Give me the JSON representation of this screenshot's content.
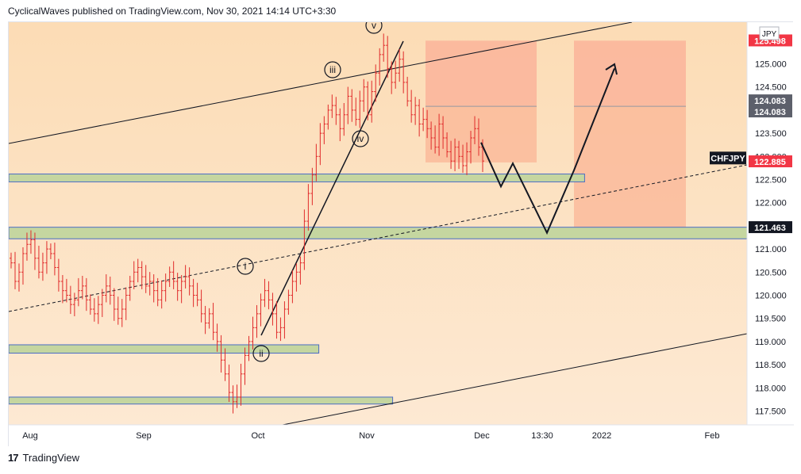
{
  "header": {
    "publish_text": "CyclicalWaves published on TradingView.com, Nov 30, 2021 14:14 UTC+3:30"
  },
  "footer": {
    "logo": "17",
    "brand": "TradingView"
  },
  "chart_data": {
    "type": "candlestick",
    "symbol": "CHFJPY",
    "currency": "JPY",
    "x_ticks": [
      "Aug",
      "Sep",
      "Oct",
      "Nov",
      "Dec",
      "13:30",
      "2022",
      "Feb"
    ],
    "y_ticks": [
      "125.000",
      "124.500",
      "123.500",
      "123.000",
      "122.500",
      "122.000",
      "121.000",
      "120.500",
      "120.000",
      "119.500",
      "119.000",
      "118.500",
      "118.000",
      "117.500"
    ],
    "ylim": [
      117.2,
      125.9
    ],
    "price_labels": [
      {
        "value": 125.498,
        "text": "125.498",
        "color": "#f23645"
      },
      {
        "value": 124.083,
        "text": "124.083",
        "color": "#5d606b"
      },
      {
        "value": 124.083,
        "text": "124.083",
        "color": "#5d606b"
      },
      {
        "value": 122.885,
        "text": "122.885",
        "color": "#f23645"
      },
      {
        "value": 121.463,
        "text": "121.463",
        "color": "#131722"
      }
    ],
    "symbol_tag": {
      "value": 123.0,
      "text": "CHFJPY"
    },
    "wave_labels": [
      "v",
      "iii",
      "iv",
      "i",
      "ii"
    ],
    "ohlc_series": {
      "t0": 0.0,
      "step": 1.0,
      "closes": [
        120.7,
        120.3,
        120.5,
        120.9,
        121.1,
        121.2,
        120.8,
        120.5,
        120.7,
        121.0,
        120.9,
        120.6,
        120.3,
        120.1,
        120.0,
        119.8,
        119.9,
        120.1,
        120.2,
        119.9,
        119.7,
        119.6,
        119.8,
        120.0,
        120.2,
        120.0,
        119.7,
        119.5,
        119.7,
        120.0,
        120.3,
        120.5,
        120.6,
        120.4,
        120.2,
        120.3,
        120.1,
        119.9,
        120.1,
        120.3,
        120.5,
        120.3,
        120.1,
        120.3,
        120.4,
        120.2,
        120.0,
        119.9,
        119.6,
        119.4,
        119.6,
        119.2,
        119.0,
        118.6,
        118.3,
        117.9,
        117.7,
        117.8,
        118.3,
        118.7,
        119.0,
        119.3,
        119.6,
        119.9,
        120.1,
        119.9,
        119.6,
        119.2,
        119.3,
        119.7,
        120.0,
        120.3,
        120.5,
        120.7,
        121.6,
        122.2,
        122.6,
        123.0,
        123.5,
        123.7,
        124.0,
        124.1,
        123.9,
        123.6,
        123.9,
        124.3,
        124.0,
        123.8,
        124.2,
        124.5,
        123.9,
        124.4,
        124.8,
        125.2,
        125.4,
        124.9,
        124.6,
        124.8,
        125.1,
        124.6,
        124.2,
        123.9,
        124.1,
        123.7,
        123.8,
        123.6,
        123.4,
        123.2,
        123.7,
        123.4,
        123.1,
        122.9,
        123.2,
        123.0,
        122.8,
        123.1,
        123.4,
        123.6,
        123.2,
        122.9
      ],
      "notes": "Red OHLC price bars from Aug 2021 to Nov 30 2021"
    },
    "zones": [
      {
        "label": "support-zone",
        "low": 122.45,
        "high": 122.62,
        "x_start": 0.0,
        "x_end": 0.78
      },
      {
        "label": "support-zone",
        "low": 121.22,
        "high": 121.47,
        "x_start": 0.0,
        "x_end": 1.0
      },
      {
        "label": "support-zone",
        "low": 118.75,
        "high": 118.93,
        "x_start": 0.0,
        "x_end": 0.42
      },
      {
        "label": "support-zone",
        "low": 117.65,
        "high": 117.8,
        "x_start": 0.0,
        "x_end": 0.52
      }
    ]
  }
}
